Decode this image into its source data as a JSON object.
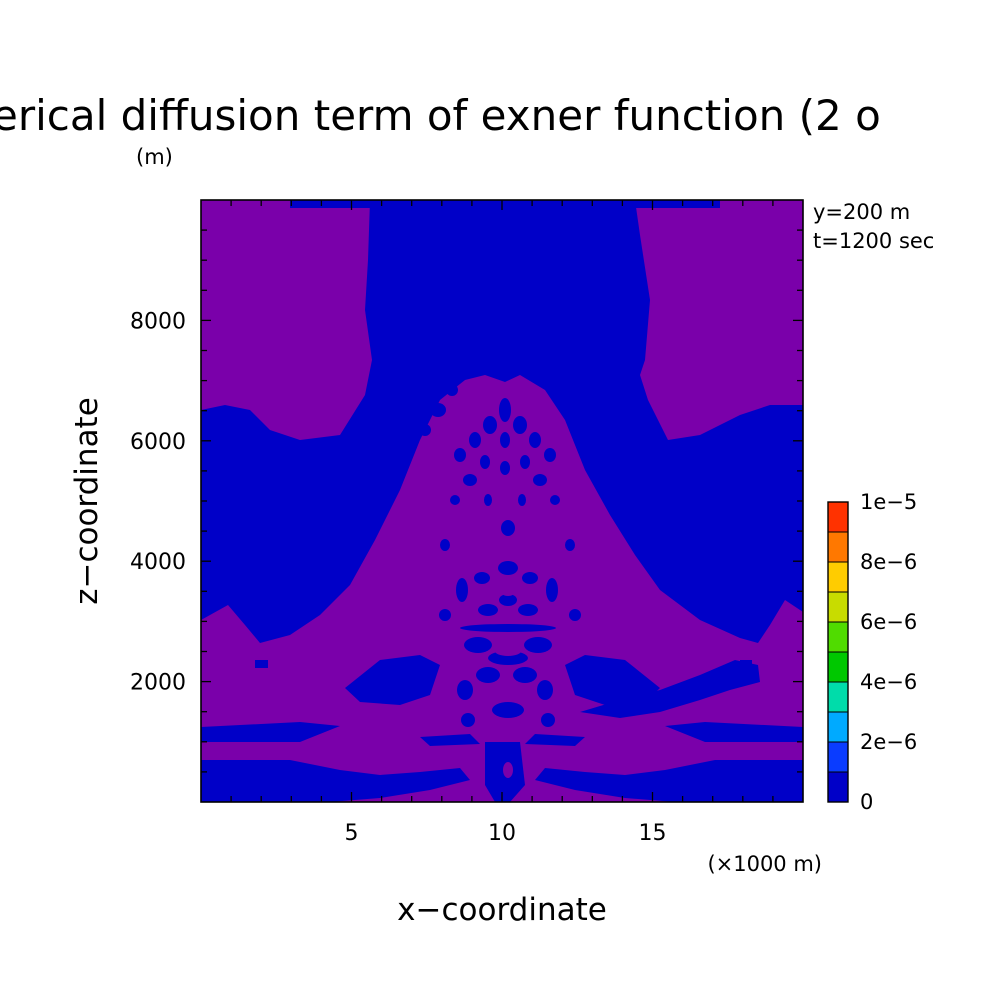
{
  "chart_data": {
    "type": "heatmap",
    "title": "erical diffusion term of exner function (2 o",
    "ylabel": "z−coordinate",
    "yunit": "(m)",
    "xlabel": "x−coordinate",
    "xunit": "(×1000 m)",
    "xlim": [
      0,
      20
    ],
    "ylim": [
      0,
      10000
    ],
    "xticks": [
      {
        "value": 5,
        "label": "5"
      },
      {
        "value": 10,
        "label": "10"
      },
      {
        "value": 15,
        "label": "15"
      }
    ],
    "yticks": [
      {
        "value": 2000,
        "label": "2000"
      },
      {
        "value": 4000,
        "label": "4000"
      },
      {
        "value": 6000,
        "label": "6000"
      },
      {
        "value": 8000,
        "label": "8000"
      }
    ],
    "annotations": [
      "y=200 m",
      "t=1200 sec"
    ],
    "colorbar": {
      "levels": [
        0,
        1e-06,
        2e-06,
        3e-06,
        4e-06,
        5e-06,
        6e-06,
        7e-06,
        8e-06,
        9e-06,
        1e-05
      ],
      "colors": [
        "#0000c8",
        "#0a3cff",
        "#00aaff",
        "#00dcaa",
        "#00c800",
        "#50dc00",
        "#c8dc00",
        "#ffcc00",
        "#ff7800",
        "#ff3200"
      ],
      "labels": [
        {
          "value": 0,
          "label": "0"
        },
        {
          "value": 2e-06,
          "label": "2e−6"
        },
        {
          "value": 4e-06,
          "label": "4e−6"
        },
        {
          "value": 6e-06,
          "label": "6e−6"
        },
        {
          "value": 8e-06,
          "label": "8e−6"
        },
        {
          "value": 1e-05,
          "label": "1e−5"
        }
      ]
    },
    "field_colors": {
      "background": "#7a00aa",
      "blue": "#0000c8"
    }
  }
}
